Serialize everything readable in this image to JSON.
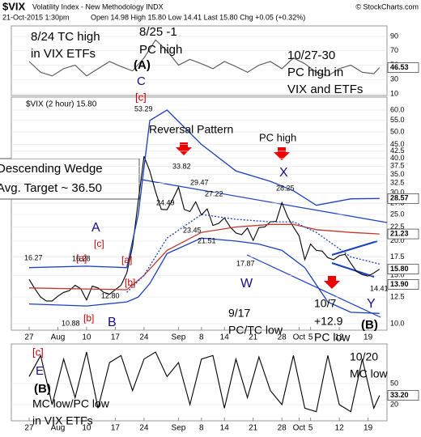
{
  "header": {
    "symbol": "$VIX",
    "name": "Volatility Index - New Methodology INDX",
    "copyright": "© StockCharts.com",
    "date": "21-Oct-2015 1:30pm",
    "quote": "Open 14.98 High 15.80 Low 14.41 Last 15.80 Chg +0.05 (+0.32%)"
  },
  "chart_data": [
    {
      "type": "line",
      "xlim": [
        -3.1,
        62.3
      ],
      "ylim": [
        7.7,
        104.6
      ],
      "yticks": [
        90,
        70,
        50,
        30,
        10
      ],
      "series": [
        {
          "color": "#555555",
          "x": [
            0,
            2,
            4,
            6,
            8,
            10,
            12,
            14,
            16,
            18,
            20,
            22,
            24,
            26,
            28,
            30,
            32,
            34,
            36,
            38,
            40,
            42,
            44,
            46,
            48,
            50,
            52,
            54,
            56,
            58,
            60,
            61
          ],
          "values": [
            55,
            40,
            35,
            45,
            50,
            35,
            45,
            55,
            48,
            42,
            60,
            85,
            70,
            50,
            58,
            52,
            45,
            55,
            48,
            40,
            50,
            55,
            45,
            60,
            52,
            40,
            35,
            45,
            50,
            40,
            38,
            46.53
          ]
        }
      ],
      "price_tags": [
        46.53
      ],
      "annotations": [
        "8/24 TC high",
        "in VIX ETFs",
        "8/25 -1",
        "PC high",
        "(A)",
        "10/27-30",
        "PC high  in",
        "VIX and ETFs"
      ]
    },
    {
      "type": "line",
      "log_scale": true,
      "legend": "$VIX (2 hour) 15.80",
      "xlim": [
        -3.1,
        62.3
      ],
      "ylim": [
        9.47,
        66.9
      ],
      "yticks": [
        {
          "value": 60,
          "label": "60.0"
        },
        {
          "value": 55,
          "label": "55.0"
        },
        {
          "value": 50,
          "label": "50.0"
        },
        {
          "value": 45,
          "label": "45.0"
        },
        {
          "value": 42.5,
          "label": "42.5"
        },
        {
          "value": 40,
          "label": "40.0"
        },
        {
          "value": 37.5,
          "label": "37.5"
        },
        {
          "value": 35,
          "label": "35.0"
        },
        {
          "value": 32.5,
          "label": "32.5"
        },
        {
          "value": 30,
          "label": "30.0"
        },
        {
          "value": 27.5,
          "label": "27.5"
        },
        {
          "value": 25,
          "label": "25.0"
        },
        {
          "value": 22.5,
          "label": "22.5"
        },
        {
          "value": 20,
          "label": "20.0"
        },
        {
          "value": 17.5,
          "label": "17.5"
        },
        {
          "value": 15,
          "label": "15.0"
        },
        {
          "value": 12.5,
          "label": "12.5"
        },
        {
          "value": 10,
          "label": "10.0"
        }
      ],
      "xticks": [
        {
          "value": 0,
          "label": "27"
        },
        {
          "value": 5,
          "label": "Aug"
        },
        {
          "value": 10,
          "label": "10"
        },
        {
          "value": 15,
          "label": "17"
        },
        {
          "value": 20,
          "label": "24"
        },
        {
          "value": 26,
          "label": "Sep"
        },
        {
          "value": 30,
          "label": "8"
        },
        {
          "value": 34,
          "label": "14"
        },
        {
          "value": 39,
          "label": "21"
        },
        {
          "value": 44,
          "label": "28"
        },
        {
          "value": 47,
          "label": "Oct"
        },
        {
          "value": 49,
          "label": "5"
        },
        {
          "value": 54,
          "label": "12"
        },
        {
          "value": 59,
          "label": "19"
        }
      ],
      "series": [
        {
          "color": "#000000",
          "x": [
            0,
            1,
            2,
            3,
            4,
            5,
            6,
            7,
            8,
            9,
            10,
            11,
            12,
            13,
            14,
            15,
            16,
            17,
            18,
            19,
            20,
            21,
            22,
            23,
            24,
            25,
            26,
            27,
            28,
            29,
            30,
            31,
            32,
            33,
            34,
            35,
            36,
            37,
            38,
            39,
            40,
            41,
            42,
            43,
            44,
            45,
            46,
            47,
            48,
            49,
            50,
            51,
            52,
            53,
            54,
            55,
            56,
            57,
            58,
            59,
            60,
            61
          ],
          "values": [
            14.5,
            13.4,
            12.5,
            12.1,
            12.1,
            12.6,
            13,
            13.2,
            13.8,
            13.4,
            12.2,
            13.7,
            13.5,
            13,
            12.8,
            13.3,
            13.8,
            15.3,
            19.1,
            28,
            40.7,
            36,
            30.3,
            26.1,
            26,
            28.4,
            31.4,
            26.1,
            25.6,
            27.8,
            24.9,
            26.2,
            22.8,
            23.2,
            24.3,
            22.5,
            21.4,
            21.1,
            22.3,
            20.1,
            22.4,
            22.5,
            23.5,
            23.6,
            27.6,
            24.5,
            22.5,
            20.9,
            17.1,
            19.5,
            18.5,
            18.4,
            17.4,
            17.1,
            17.7,
            17.9,
            16.6,
            15.5,
            15.1,
            14.9,
            15.3,
            15.8
          ]
        },
        {
          "color": "#1a3fbf",
          "x": [
            0,
            10,
            17,
            19,
            21,
            24,
            30,
            36,
            42,
            46,
            50,
            56,
            61
          ],
          "values": [
            16,
            16.2,
            16,
            25,
            55,
            60,
            45,
            36,
            33,
            30.5,
            27,
            28.5,
            28.57
          ]
        },
        {
          "color": "#1a3fbf",
          "x": [
            0,
            10,
            17,
            19,
            21,
            24,
            30,
            36,
            40,
            44,
            48,
            52,
            56,
            61
          ],
          "values": [
            11.8,
            11.6,
            12,
            12.5,
            14,
            18,
            20.5,
            20,
            19.5,
            18.5,
            16,
            12,
            11,
            10.9
          ]
        },
        {
          "color": "#c0392b",
          "x": [
            0,
            17,
            20,
            24,
            30,
            36,
            42,
            46,
            50,
            56,
            61
          ],
          "values": [
            13.5,
            13.3,
            15,
            18.5,
            21.5,
            22.5,
            23,
            23,
            22,
            21.5,
            21.23
          ]
        },
        {
          "color": "#1a3fbf",
          "dash": true,
          "x": [
            17,
            20,
            24,
            30,
            36,
            42,
            46,
            50,
            56,
            61
          ],
          "values": [
            13,
            15,
            20.5,
            25,
            24,
            23.5,
            23.5,
            21.5,
            17.5,
            16.5
          ]
        }
      ],
      "price_tags": [
        28.57,
        21.23,
        {
          "value": 15.8,
          "label": "15.80"
        },
        {
          "value": 13.9,
          "label": "13.90"
        }
      ],
      "annotations": [
        "C",
        "[c]",
        "53.29",
        "Reversal Pattern",
        "PC high",
        "X",
        "33.82",
        "29.47",
        "27.22",
        "28.25",
        "24.49",
        "23.45",
        "21.51",
        "17.87",
        "Descending Wedge",
        "Avg. Target ~ 36.50",
        "A",
        "[c]",
        "[a]",
        "[a]",
        "16.27",
        "16.28",
        "12.80",
        "[b]",
        "[b]",
        "B",
        "10.88",
        "W",
        "9/17",
        "PC/TC low",
        "10/7",
        "+12.9",
        "PC low",
        "Y",
        "(B)",
        "14.41"
      ]
    },
    {
      "type": "line",
      "xlim": [
        -3.1,
        62.3
      ],
      "ylim": [
        -3,
        106.5
      ],
      "yticks": [
        50,
        20
      ],
      "xticks": [
        {
          "value": 0,
          "label": "27"
        },
        {
          "value": 5,
          "label": "Aug"
        },
        {
          "value": 10,
          "label": "10"
        },
        {
          "value": 15,
          "label": "17"
        },
        {
          "value": 20,
          "label": "24"
        },
        {
          "value": 26,
          "label": "Sep"
        },
        {
          "value": 30,
          "label": "8"
        },
        {
          "value": 34,
          "label": "14"
        },
        {
          "value": 39,
          "label": "21"
        },
        {
          "value": 44,
          "label": "28"
        },
        {
          "value": 47,
          "label": "Oct"
        },
        {
          "value": 49,
          "label": "5"
        },
        {
          "value": 54,
          "label": "12"
        },
        {
          "value": 59,
          "label": "19"
        }
      ],
      "series": [
        {
          "color": "#000000",
          "x": [
            0,
            2,
            4,
            6,
            8,
            10,
            12,
            14,
            16,
            18,
            20,
            22,
            24,
            26,
            28,
            30,
            32,
            34,
            36,
            38,
            40,
            42,
            44,
            46,
            48,
            50,
            52,
            54,
            56,
            58,
            60,
            61
          ],
          "values": [
            60,
            90,
            20,
            85,
            30,
            95,
            15,
            80,
            90,
            40,
            85,
            95,
            60,
            80,
            20,
            85,
            90,
            15,
            85,
            30,
            88,
            40,
            20,
            90,
            15,
            10,
            90,
            20,
            10,
            85,
            15,
            33.2
          ]
        }
      ],
      "price_tags": [
        {
          "value": 33.2,
          "label": "33.20"
        }
      ],
      "annotations": [
        "[c]",
        "E",
        "(B)",
        "MC low/PC low",
        "in VIX ETFs",
        "10/20",
        "MC low"
      ]
    }
  ]
}
